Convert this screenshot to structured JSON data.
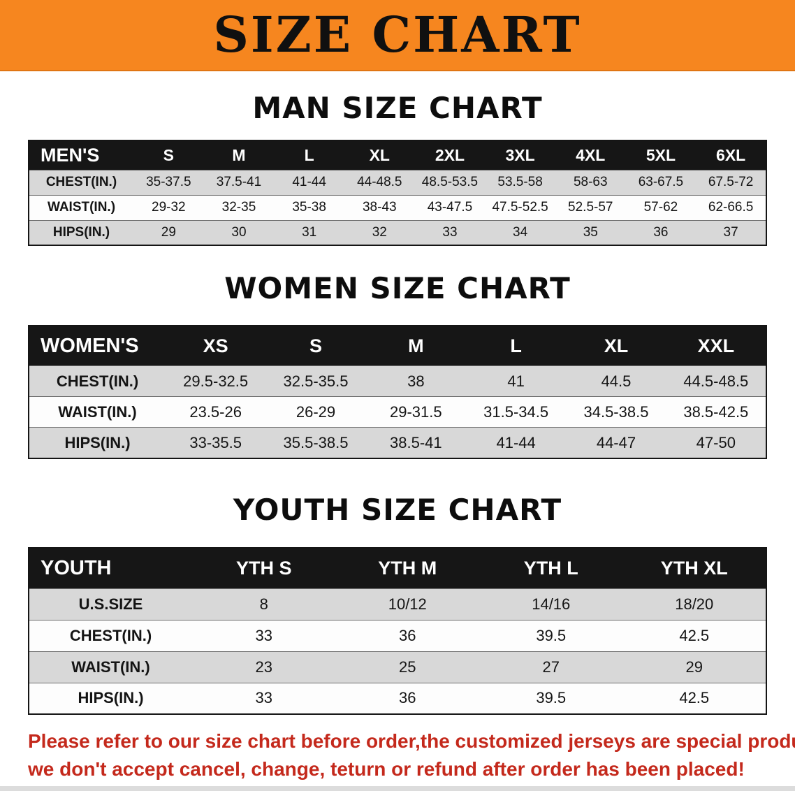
{
  "banner": {
    "title": "SIZE CHART",
    "bg_color": "#f6861f",
    "text_color": "#101010"
  },
  "tables": [
    {
      "title": "MAN SIZE CHART",
      "header": [
        "MEN'S",
        "S",
        "M",
        "L",
        "XL",
        "2XL",
        "3XL",
        "4XL",
        "5XL",
        "6XL"
      ],
      "rows": [
        [
          "CHEST(IN.)",
          "35-37.5",
          "37.5-41",
          "41-44",
          "44-48.5",
          "48.5-53.5",
          "53.5-58",
          "58-63",
          "63-67.5",
          "67.5-72"
        ],
        [
          "WAIST(IN.)",
          "29-32",
          "32-35",
          "35-38",
          "38-43",
          "43-47.5",
          "47.5-52.5",
          "52.5-57",
          "57-62",
          "62-66.5"
        ],
        [
          "HIPS(IN.)",
          "29",
          "30",
          "31",
          "32",
          "33",
          "34",
          "35",
          "36",
          "37"
        ]
      ]
    },
    {
      "title": "WOMEN SIZE CHART",
      "header": [
        "WOMEN'S",
        "XS",
        "S",
        "M",
        "L",
        "XL",
        "XXL"
      ],
      "rows": [
        [
          "CHEST(IN.)",
          "29.5-32.5",
          "32.5-35.5",
          "38",
          "41",
          "44.5",
          "44.5-48.5"
        ],
        [
          "WAIST(IN.)",
          "23.5-26",
          "26-29",
          "29-31.5",
          "31.5-34.5",
          "34.5-38.5",
          "38.5-42.5"
        ],
        [
          "HIPS(IN.)",
          "33-35.5",
          "35.5-38.5",
          "38.5-41",
          "41-44",
          "44-47",
          "47-50"
        ]
      ]
    },
    {
      "title": "YOUTH SIZE CHART",
      "header": [
        "YOUTH",
        "YTH S",
        "YTH M",
        "YTH L",
        "YTH XL"
      ],
      "rows": [
        [
          "U.S.SIZE",
          "8",
          "10/12",
          "14/16",
          "18/20"
        ],
        [
          "CHEST(IN.)",
          "33",
          "36",
          "39.5",
          "42.5"
        ],
        [
          "WAIST(IN.)",
          "23",
          "25",
          "27",
          "29"
        ],
        [
          "HIPS(IN.)",
          "33",
          "36",
          "39.5",
          "42.5"
        ]
      ]
    }
  ],
  "disclaimer": {
    "line1": "Please refer to our size chart before order,the customized jerseys are special products,",
    "line2": "we don't accept cancel, change, teturn or refund after order has been placed!",
    "color": "#c4291c"
  }
}
